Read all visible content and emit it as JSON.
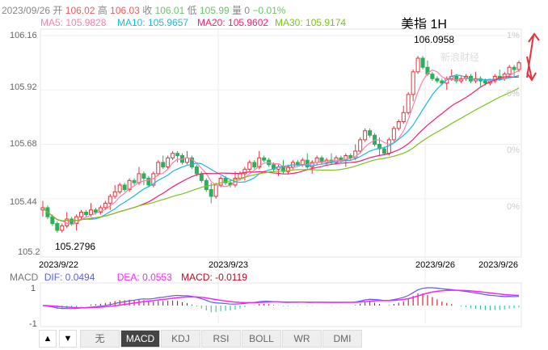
{
  "header": {
    "date": "2023/09/26",
    "open_label": "开",
    "open": "106.02",
    "high_label": "高",
    "high": "106.03",
    "close_label": "收",
    "close": "106.01",
    "low_label": "低",
    "low": "105.99",
    "vol_label": "量",
    "vol": "0",
    "change": "−0.01%"
  },
  "ma": {
    "ma5": "MA5: 105.9828",
    "ma10": "MA10: 105.9657",
    "ma20": "MA20: 105.9602",
    "ma30": "MA30: 105.9174"
  },
  "title": "美指 1H",
  "watermark": "新浪财经",
  "y_labels": [
    "106.16",
    "105.92",
    "105.68",
    "105.44",
    "105.2"
  ],
  "pct_labels": [
    "1%",
    "0%",
    "0%",
    "0%"
  ],
  "max_label": "106.0958",
  "min_label": "105.2796",
  "dates": [
    "2023/9/22",
    "2023/9/23",
    "2023/9/26",
    "2023/9/26"
  ],
  "macd": {
    "name": "MACD",
    "dif": "DIF: 0.0494",
    "dea": "DEA: 0.0553",
    "macd": "MACD: -0.0119",
    "ymax": "1",
    "ymin": "-1"
  },
  "buttons": {
    "up": "▲",
    "down": "▼",
    "tabs": [
      "无",
      "MACD",
      "KDJ",
      "RSI",
      "BOLL",
      "WR",
      "DMI"
    ]
  },
  "colors": {
    "up": "#e8313a",
    "down": "#2cae5a",
    "ma5": "#ff7fa8",
    "ma10": "#1cb8e0",
    "ma20": "#ff1b6b",
    "ma30": "#7ac41c",
    "dif": "#5b5bff",
    "dea": "#ff20ff"
  },
  "chart_data": {
    "type": "candlestick",
    "ylim": [
      105.2,
      106.16
    ],
    "closes": [
      105.4,
      105.36,
      105.33,
      105.3,
      105.32,
      105.35,
      105.33,
      105.36,
      105.38,
      105.37,
      105.39,
      105.38,
      105.4,
      105.42,
      105.45,
      105.47,
      105.5,
      105.48,
      105.52,
      105.51,
      105.55,
      105.53,
      105.5,
      105.55,
      105.6,
      105.58,
      105.62,
      105.64,
      105.63,
      105.6,
      105.62,
      105.58,
      105.55,
      105.52,
      105.48,
      105.45,
      105.5,
      105.53,
      105.51,
      105.5,
      105.53,
      105.55,
      105.57,
      105.6,
      105.58,
      105.62,
      105.61,
      105.59,
      105.57,
      105.58,
      105.56,
      105.58,
      105.6,
      105.59,
      105.61,
      105.58,
      105.6,
      105.62,
      105.6,
      105.61,
      105.6,
      105.62,
      105.61,
      105.63,
      105.62,
      105.65,
      105.7,
      105.74,
      105.72,
      105.68,
      105.66,
      105.64,
      105.7,
      105.75,
      105.78,
      105.82,
      105.9,
      106.0,
      106.06,
      106.02,
      105.99,
      105.97,
      105.96,
      105.95,
      105.97,
      105.98,
      105.96,
      105.97,
      105.98,
      105.96,
      105.97,
      105.96,
      105.95,
      105.96,
      105.98,
      105.97,
      105.99,
      106.02,
      106.01,
      106.04
    ]
  }
}
